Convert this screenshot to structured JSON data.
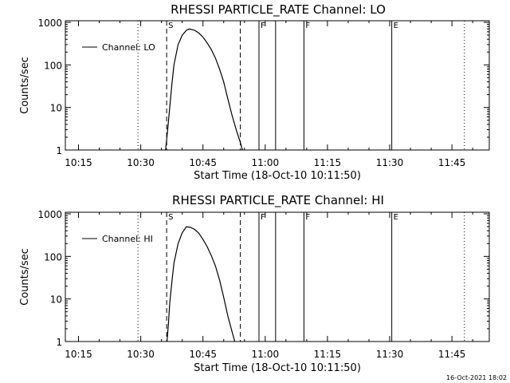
{
  "chart_data": [
    {
      "type": "line",
      "title": "RHESSI PARTICLE_RATE Channel: LO",
      "xlabel": "Start Time (18-Oct-10 10:11:50)",
      "ylabel": "Counts/sec",
      "y_scale": "log",
      "xlim": [
        "10:11:50",
        "11:54"
      ],
      "ylim": [
        1,
        1000
      ],
      "x_ticks": [
        "10:15",
        "10:30",
        "10:45",
        "11:00",
        "11:15",
        "11:30",
        "11:45"
      ],
      "y_ticks": [
        "1",
        "10",
        "100",
        "1000"
      ],
      "legend": {
        "label": "Channel: LO",
        "placement": "top-left"
      },
      "grid": false,
      "series": [
        {
          "name": "Channel: LO",
          "x": [
            "10:36:00",
            "10:36:30",
            "10:37:00",
            "10:37:30",
            "10:38:00",
            "10:39:00",
            "10:40:00",
            "10:41:00",
            "10:41:40",
            "10:42:00",
            "10:43:00",
            "10:44:00",
            "10:45:00",
            "10:46:00",
            "10:47:00",
            "10:48:00",
            "10:49:00",
            "10:50:00",
            "10:51:00",
            "10:52:00",
            "10:53:00",
            "10:54:00",
            "10:54:30"
          ],
          "y": [
            1,
            3,
            10,
            35,
            100,
            300,
            500,
            650,
            700,
            690,
            650,
            560,
            450,
            330,
            230,
            145,
            80,
            40,
            16,
            6.5,
            3,
            1.5,
            1
          ]
        }
      ],
      "vertical_markers": [
        {
          "time": "10:29:20",
          "style": "dotted",
          "label": ""
        },
        {
          "time": "10:36:15",
          "style": "dashed",
          "label": "S"
        },
        {
          "time": "10:54:00",
          "style": "dashed",
          "label": ""
        },
        {
          "time": "10:58:30",
          "style": "solid",
          "label": "F"
        },
        {
          "time": "11:02:30",
          "style": "solid",
          "label": ""
        },
        {
          "time": "11:09:20",
          "style": "solid",
          "label": "F"
        },
        {
          "time": "11:30:30",
          "style": "solid",
          "label": "E"
        },
        {
          "time": "11:48:00",
          "style": "dotted",
          "label": ""
        }
      ]
    },
    {
      "type": "line",
      "title": "RHESSI PARTICLE_RATE Channel: HI",
      "xlabel": "Start Time (18-Oct-10 10:11:50)",
      "ylabel": "Counts/sec",
      "y_scale": "log",
      "xlim": [
        "10:11:50",
        "11:54"
      ],
      "ylim": [
        1,
        1000
      ],
      "x_ticks": [
        "10:15",
        "10:30",
        "10:45",
        "11:00",
        "11:15",
        "11:30",
        "11:45"
      ],
      "y_ticks": [
        "1",
        "10",
        "100",
        "1000"
      ],
      "legend": {
        "label": "Channel: HI",
        "placement": "top-left"
      },
      "grid": false,
      "series": [
        {
          "name": "Channel: HI",
          "x": [
            "10:36:20",
            "10:36:40",
            "10:37:00",
            "10:37:30",
            "10:38:00",
            "10:39:00",
            "10:40:00",
            "10:41:00",
            "10:42:00",
            "10:43:00",
            "10:44:00",
            "10:45:00",
            "10:46:00",
            "10:47:00",
            "10:48:00",
            "10:49:00",
            "10:50:00",
            "10:51:00",
            "10:52:00",
            "10:52:40"
          ],
          "y": [
            1,
            2.5,
            8,
            25,
            70,
            200,
            360,
            500,
            480,
            430,
            350,
            250,
            170,
            105,
            60,
            28,
            11,
            4,
            1.7,
            1
          ]
        }
      ],
      "vertical_markers": [
        {
          "time": "10:29:20",
          "style": "dotted",
          "label": ""
        },
        {
          "time": "10:36:15",
          "style": "dashed",
          "label": "S"
        },
        {
          "time": "10:54:00",
          "style": "dashed",
          "label": ""
        },
        {
          "time": "10:58:30",
          "style": "solid",
          "label": "F"
        },
        {
          "time": "11:02:30",
          "style": "solid",
          "label": ""
        },
        {
          "time": "11:09:20",
          "style": "solid",
          "label": "F"
        },
        {
          "time": "11:30:30",
          "style": "solid",
          "label": "E"
        },
        {
          "time": "11:48:00",
          "style": "dotted",
          "label": ""
        }
      ]
    }
  ],
  "footer": {
    "timestamp": "16-Oct-2021 18:02"
  }
}
